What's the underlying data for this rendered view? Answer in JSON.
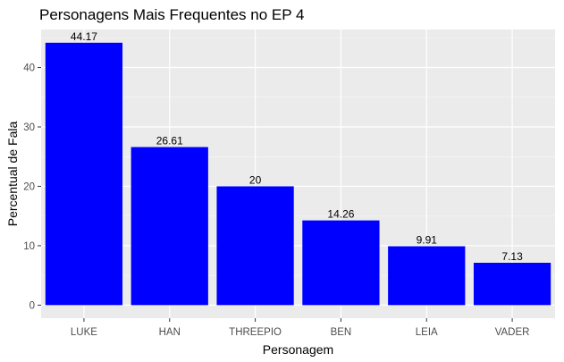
{
  "chart_data": {
    "type": "bar",
    "title": "Personagens Mais Frequentes no EP 4",
    "xlabel": "Personagem",
    "ylabel": "Percentual de Fala",
    "categories": [
      "LUKE",
      "HAN",
      "THREEPIO",
      "BEN",
      "LEIA",
      "VADER"
    ],
    "values": [
      44.17,
      26.61,
      20,
      14.26,
      9.91,
      7.13
    ],
    "value_labels": [
      "44.17",
      "26.61",
      "20",
      "14.26",
      "9.91",
      "7.13"
    ],
    "yticks": [
      0,
      10,
      20,
      30,
      40
    ],
    "ylim": [
      -2.2,
      46.4
    ],
    "grid": true,
    "legend": "none",
    "colors": {
      "bar_fill": "#0000ff",
      "panel_background": "#ebebeb",
      "grid_major": "#ffffff",
      "grid_minor": "#f5f5f5",
      "tick_text": "#4d4d4d"
    }
  }
}
